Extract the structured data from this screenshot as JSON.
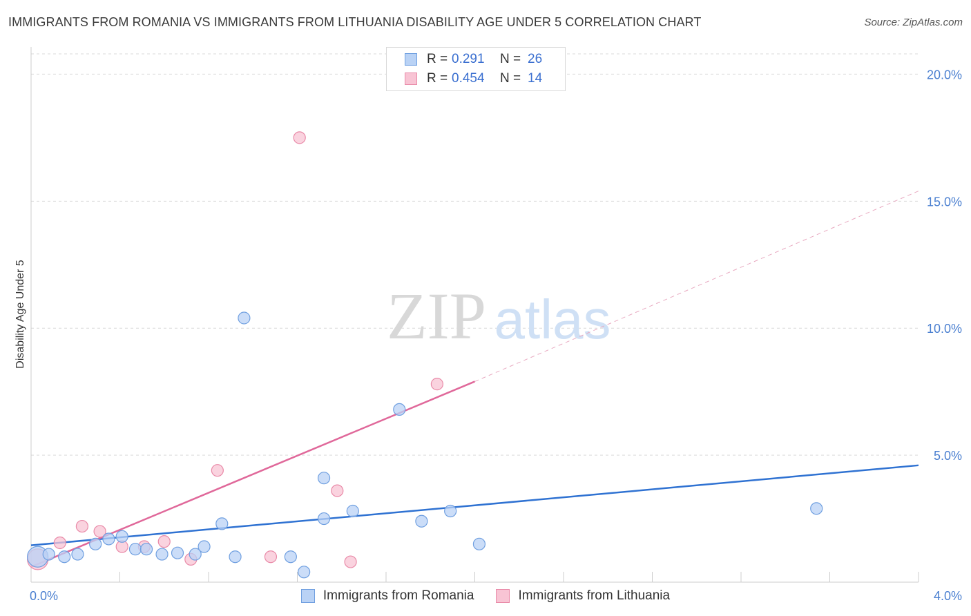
{
  "title": "IMMIGRANTS FROM ROMANIA VS IMMIGRANTS FROM LITHUANIA DISABILITY AGE UNDER 5 CORRELATION CHART",
  "source": "Source: ZipAtlas.com",
  "watermark": {
    "zip": "ZIP",
    "atlas": "atlas"
  },
  "legend": {
    "rows": [
      {
        "r_label": "R =",
        "r_value": "0.291",
        "n_label": "N =",
        "n_value": "26"
      },
      {
        "r_label": "R =",
        "r_value": "0.454",
        "n_label": "N =",
        "n_value": "14"
      }
    ]
  },
  "bottom_legend": [
    "Immigrants from Romania",
    "Immigrants from Lithuania"
  ],
  "colors": {
    "romania_fill": "#b9d2f5",
    "romania_stroke": "#6f9fe0",
    "romania_line": "#2f72d2",
    "lithuania_fill": "#f8c4d4",
    "lithuania_stroke": "#e98aa8",
    "lithuania_line": "#e0689a",
    "grid": "#d9d9d9",
    "tick_text": "#4a7fd0"
  },
  "chart_data": {
    "type": "scatter",
    "title": "IMMIGRANTS FROM ROMANIA VS IMMIGRANTS FROM LITHUANIA DISABILITY AGE UNDER 5 CORRELATION CHART",
    "xlabel": "",
    "ylabel": "Disability Age Under 5",
    "xlim": [
      0,
      4.0
    ],
    "ylim": [
      0,
      20.8
    ],
    "x_tick_labels": [
      "0.0%",
      "4.0%"
    ],
    "y_ticks": [
      5,
      10,
      15,
      20
    ],
    "y_tick_labels": [
      "5.0%",
      "10.0%",
      "15.0%",
      "20.0%"
    ],
    "grid": true,
    "series": [
      {
        "name": "Immigrants from Romania",
        "r": 0.291,
        "n": 26,
        "points": [
          {
            "x": 0.03,
            "y": 1.0,
            "big": true
          },
          {
            "x": 0.08,
            "y": 1.1
          },
          {
            "x": 0.15,
            "y": 1.0
          },
          {
            "x": 0.21,
            "y": 1.1
          },
          {
            "x": 0.29,
            "y": 1.5
          },
          {
            "x": 0.35,
            "y": 1.7
          },
          {
            "x": 0.41,
            "y": 1.8
          },
          {
            "x": 0.47,
            "y": 1.3
          },
          {
            "x": 0.52,
            "y": 1.3
          },
          {
            "x": 0.59,
            "y": 1.1
          },
          {
            "x": 0.66,
            "y": 1.15
          },
          {
            "x": 0.74,
            "y": 1.1
          },
          {
            "x": 0.78,
            "y": 1.4
          },
          {
            "x": 0.86,
            "y": 2.3
          },
          {
            "x": 0.92,
            "y": 1.0
          },
          {
            "x": 0.96,
            "y": 10.4
          },
          {
            "x": 1.17,
            "y": 1.0
          },
          {
            "x": 1.23,
            "y": 0.4
          },
          {
            "x": 1.32,
            "y": 2.5
          },
          {
            "x": 1.32,
            "y": 4.1
          },
          {
            "x": 1.45,
            "y": 2.8
          },
          {
            "x": 1.66,
            "y": 6.8
          },
          {
            "x": 1.76,
            "y": 2.4
          },
          {
            "x": 1.89,
            "y": 2.8
          },
          {
            "x": 2.02,
            "y": 1.5
          },
          {
            "x": 3.54,
            "y": 2.9
          }
        ],
        "trend": {
          "x0": 0.0,
          "y0": 1.45,
          "x1": 4.0,
          "y1": 4.6
        }
      },
      {
        "name": "Immigrants from Lithuania",
        "r": 0.454,
        "n": 14,
        "points": [
          {
            "x": 0.03,
            "y": 0.9,
            "big": true
          },
          {
            "x": 0.13,
            "y": 1.55
          },
          {
            "x": 0.23,
            "y": 2.2
          },
          {
            "x": 0.31,
            "y": 2.0
          },
          {
            "x": 0.41,
            "y": 1.4
          },
          {
            "x": 0.51,
            "y": 1.4
          },
          {
            "x": 0.6,
            "y": 1.6
          },
          {
            "x": 0.72,
            "y": 0.9
          },
          {
            "x": 0.84,
            "y": 4.4
          },
          {
            "x": 1.08,
            "y": 1.0
          },
          {
            "x": 1.21,
            "y": 17.5
          },
          {
            "x": 1.38,
            "y": 3.6
          },
          {
            "x": 1.44,
            "y": 0.8
          },
          {
            "x": 1.83,
            "y": 7.8
          }
        ],
        "trend": {
          "x0": 0.0,
          "y0": 0.6,
          "x1": 2.0,
          "y1": 7.9,
          "dash_x1": 4.0,
          "dash_y1": 15.4
        }
      }
    ]
  }
}
